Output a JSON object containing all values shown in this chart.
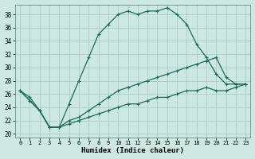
{
  "title": "",
  "xlabel": "Humidex (Indice chaleur)",
  "bg_color": "#cce8e0",
  "grid_color": "#aacccc",
  "line_color": "#1a6b5a",
  "xlim": [
    -0.5,
    23.5
  ],
  "ylim": [
    19.5,
    39.5
  ],
  "xticks": [
    0,
    1,
    2,
    3,
    4,
    5,
    6,
    7,
    8,
    9,
    10,
    11,
    12,
    13,
    14,
    15,
    16,
    17,
    18,
    19,
    20,
    21,
    22,
    23
  ],
  "yticks": [
    20,
    22,
    24,
    26,
    28,
    30,
    32,
    34,
    36,
    38
  ],
  "line1_x": [
    0,
    1,
    2,
    3,
    4,
    5,
    6,
    7,
    8,
    9,
    10,
    11,
    12,
    13,
    14,
    15,
    16,
    17,
    18,
    19,
    20,
    21,
    22,
    23
  ],
  "line1_y": [
    26.5,
    25.0,
    23.5,
    21.0,
    21.0,
    24.5,
    28.0,
    31.5,
    35.0,
    36.5,
    38.0,
    38.5,
    38.0,
    38.5,
    38.5,
    39.0,
    38.0,
    36.5,
    33.5,
    31.5,
    29.0,
    27.5,
    27.5,
    27.5
  ],
  "line2_x": [
    0,
    1,
    2,
    3,
    4,
    5,
    6,
    7,
    8,
    9,
    10,
    11,
    12,
    13,
    14,
    15,
    16,
    17,
    18,
    19,
    20,
    21,
    22,
    23
  ],
  "line2_y": [
    26.5,
    25.5,
    23.5,
    21.0,
    21.0,
    22.0,
    22.5,
    23.5,
    24.5,
    25.5,
    26.5,
    27.0,
    27.5,
    28.0,
    28.5,
    29.0,
    29.5,
    30.0,
    30.5,
    31.0,
    31.5,
    28.5,
    27.5,
    27.5
  ],
  "line3_x": [
    0,
    1,
    2,
    3,
    4,
    5,
    6,
    7,
    8,
    9,
    10,
    11,
    12,
    13,
    14,
    15,
    16,
    17,
    18,
    19,
    20,
    21,
    22,
    23
  ],
  "line3_y": [
    26.5,
    25.0,
    23.5,
    21.0,
    21.0,
    21.5,
    22.0,
    22.5,
    23.0,
    23.5,
    24.0,
    24.5,
    24.5,
    25.0,
    25.5,
    25.5,
    26.0,
    26.5,
    26.5,
    27.0,
    26.5,
    26.5,
    27.0,
    27.5
  ]
}
